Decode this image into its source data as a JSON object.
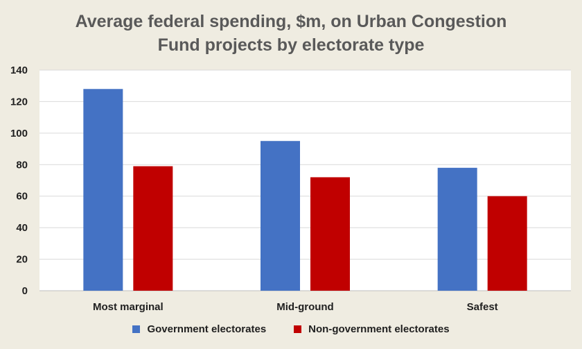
{
  "chart_data": {
    "type": "bar",
    "title_line1": "Average federal spending, $m, on Urban Congestion",
    "title_line2": "Fund projects by electorate type",
    "categories": [
      "Most marginal",
      "Mid-ground",
      "Safest"
    ],
    "series": [
      {
        "name": "Government electorates",
        "values": [
          128,
          95,
          78
        ],
        "color": "#4472c4"
      },
      {
        "name": "Non-government electorates",
        "values": [
          79,
          72,
          60
        ],
        "color": "#c00000"
      }
    ],
    "ylim": [
      0,
      140
    ],
    "yticks": [
      0,
      20,
      40,
      60,
      80,
      100,
      120,
      140
    ],
    "grid": true,
    "legend_position": "bottom",
    "background": "#efece1",
    "plot_background": "#ffffff",
    "grid_color": "#d9d9d9"
  }
}
